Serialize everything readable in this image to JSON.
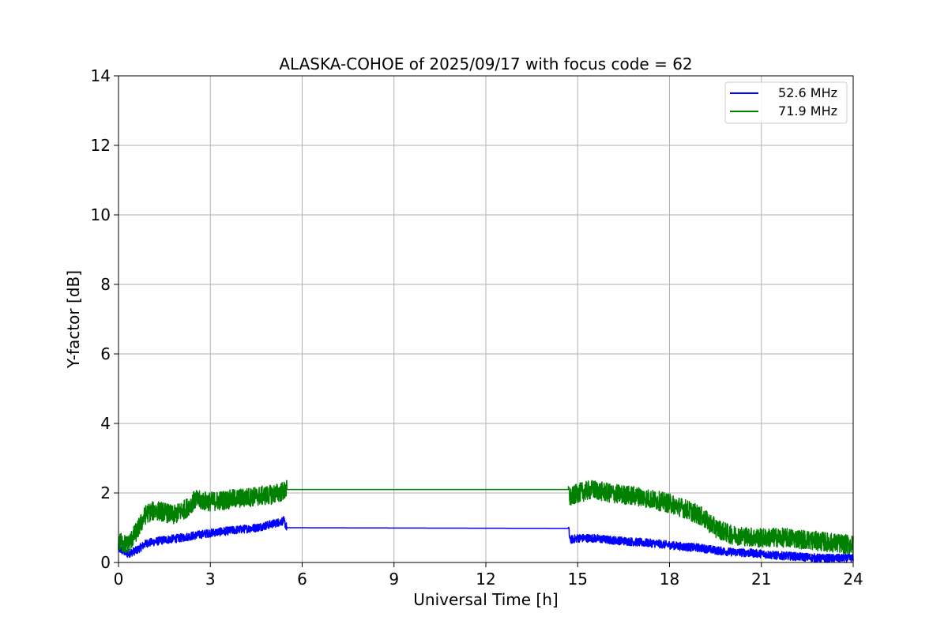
{
  "chart_data": {
    "type": "line",
    "title": "ALASKA-COHOE of 2025/09/17 with focus code = 62",
    "xlabel": "Universal Time [h]",
    "ylabel": "Y-factor [dB]",
    "xlim": [
      0,
      24
    ],
    "ylim": [
      0,
      14
    ],
    "xticks": [
      0,
      3,
      6,
      9,
      12,
      15,
      18,
      21,
      24
    ],
    "yticks": [
      0,
      2,
      4,
      6,
      8,
      10,
      12,
      14
    ],
    "grid": true,
    "legend_position": "top-right",
    "series": [
      {
        "name": "52.6 MHz",
        "color": "#0000ff",
        "x": [
          0,
          0.3,
          0.6,
          0.9,
          1.2,
          1.5,
          2.0,
          2.5,
          3.0,
          3.5,
          4.0,
          4.5,
          5.0,
          5.4,
          5.5,
          14.7,
          14.75,
          15.0,
          15.5,
          16.0,
          16.5,
          17.0,
          17.5,
          18.0,
          18.5,
          19.0,
          19.5,
          20.0,
          20.5,
          21.0,
          21.5,
          22.0,
          22.5,
          23.0,
          23.5,
          24.0
        ],
        "values": [
          0.4,
          0.25,
          0.35,
          0.55,
          0.6,
          0.65,
          0.7,
          0.78,
          0.85,
          0.9,
          0.95,
          1.0,
          1.1,
          1.2,
          1.0,
          0.98,
          0.65,
          0.7,
          0.7,
          0.65,
          0.62,
          0.58,
          0.55,
          0.5,
          0.45,
          0.42,
          0.35,
          0.3,
          0.28,
          0.25,
          0.2,
          0.18,
          0.15,
          0.12,
          0.12,
          0.12
        ]
      },
      {
        "name": "71.9 MHz",
        "color": "#008000",
        "x": [
          0,
          0.3,
          0.6,
          0.9,
          1.2,
          1.5,
          1.8,
          2.2,
          2.5,
          3.0,
          3.5,
          4.0,
          4.5,
          5.0,
          5.4,
          5.5,
          14.7,
          14.75,
          15.0,
          15.5,
          16.0,
          16.5,
          17.0,
          17.5,
          18.0,
          18.5,
          19.0,
          19.5,
          20.0,
          20.5,
          21.0,
          21.5,
          22.0,
          22.5,
          23.0,
          23.5,
          24.0
        ],
        "values": [
          0.6,
          0.5,
          0.9,
          1.4,
          1.5,
          1.45,
          1.35,
          1.55,
          1.8,
          1.75,
          1.8,
          1.85,
          1.9,
          1.95,
          2.05,
          2.1,
          2.1,
          1.85,
          2.0,
          2.1,
          2.0,
          1.95,
          1.9,
          1.8,
          1.7,
          1.55,
          1.35,
          1.0,
          0.8,
          0.75,
          0.7,
          0.72,
          0.7,
          0.65,
          0.6,
          0.55,
          0.5
        ]
      }
    ]
  }
}
